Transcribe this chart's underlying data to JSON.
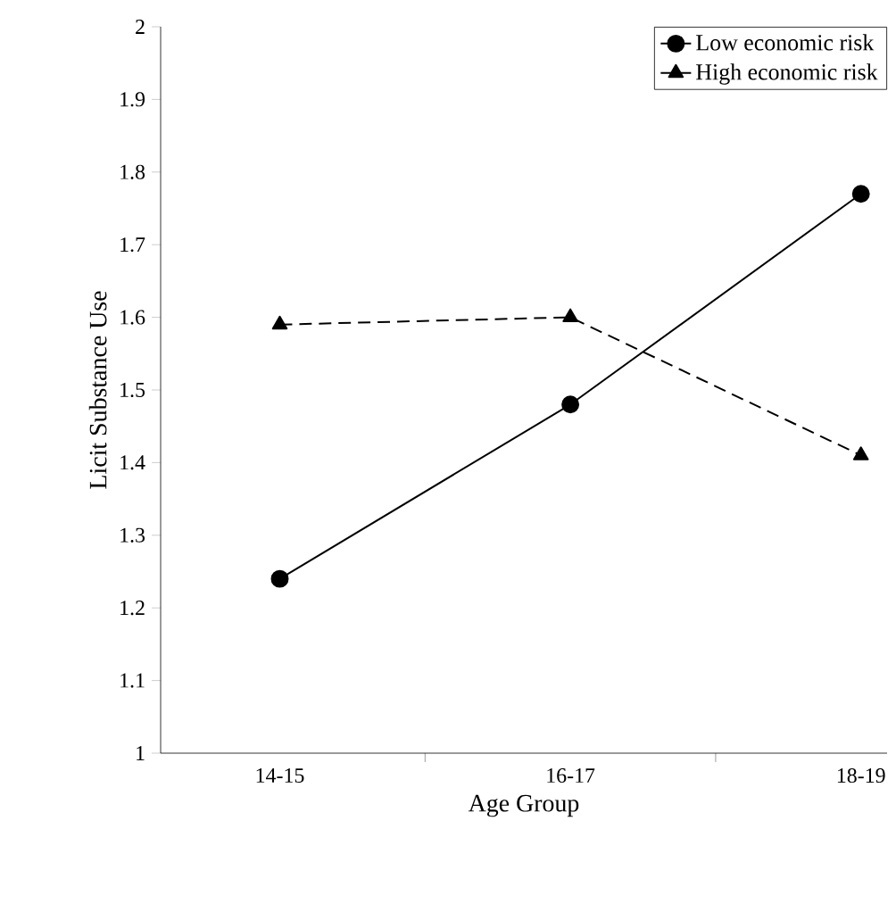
{
  "chart_data": {
    "type": "line",
    "xlabel": "Age Group",
    "ylabel": "Licit Substance Use",
    "categories": [
      "14-15",
      "16-17",
      "18-19"
    ],
    "series": [
      {
        "name": "Low economic risk",
        "color": "#000000",
        "marker": "circle",
        "line_style": "solid",
        "values": [
          1.24,
          1.48,
          1.77
        ]
      },
      {
        "name": "High economic risk",
        "color": "#000000",
        "marker": "triangle",
        "line_style": "dashed",
        "values": [
          1.59,
          1.6,
          1.41
        ]
      }
    ],
    "ylim": [
      1,
      2
    ],
    "yticks": [
      1,
      1.1,
      1.2,
      1.3,
      1.4,
      1.5,
      1.6,
      1.7,
      1.8,
      1.9,
      2
    ],
    "grid": false,
    "legend": "top right"
  }
}
